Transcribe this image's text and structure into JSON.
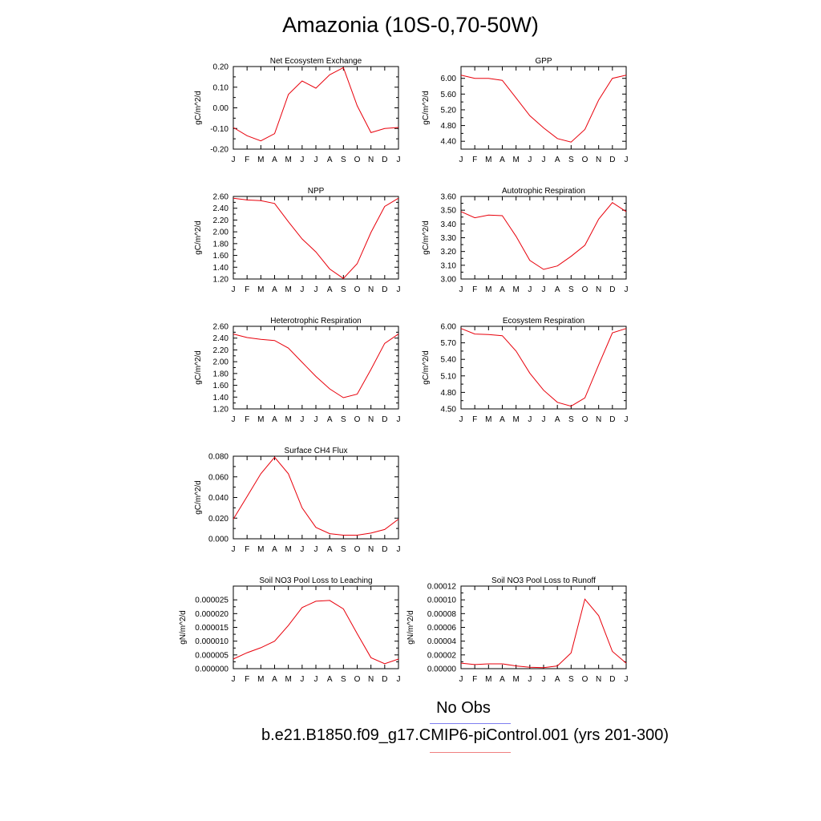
{
  "figure": {
    "title": "Amazonia (10S-0,70-50W)",
    "legend": [
      {
        "label": "No Obs",
        "color": "#7f7ff0"
      },
      {
        "label": "b.e21.B1850.f09_g17.CMIP6-piControl.001 (yrs 201-300)",
        "color": "#f08080"
      }
    ],
    "series_color": "#e8000b"
  },
  "chart_data": [
    {
      "type": "line",
      "title": "Net Ecosystem Exchange",
      "ylabel": "gC/m^2/d",
      "categories": [
        "J",
        "F",
        "M",
        "A",
        "M",
        "J",
        "J",
        "A",
        "S",
        "O",
        "N",
        "D",
        "J"
      ],
      "ylim": [
        -0.2,
        0.2
      ],
      "yticks": [
        "0.20",
        "0.10",
        "0.00",
        "-0.10",
        "-0.20"
      ],
      "ytick_values": [
        0.2,
        0.1,
        0.0,
        -0.1,
        -0.2
      ],
      "values": [
        -0.095,
        -0.135,
        -0.16,
        -0.125,
        0.065,
        0.13,
        0.095,
        0.16,
        0.195,
        0.01,
        -0.12,
        -0.1,
        -0.095
      ]
    },
    {
      "type": "line",
      "title": "GPP",
      "ylabel": "gC/m^2/d",
      "categories": [
        "J",
        "F",
        "M",
        "A",
        "M",
        "J",
        "J",
        "A",
        "S",
        "O",
        "N",
        "D",
        "J"
      ],
      "ylim": [
        4.2,
        6.3
      ],
      "yticks": [
        "6.00",
        "5.60",
        "5.20",
        "4.80",
        "4.40"
      ],
      "ytick_values": [
        6.0,
        5.6,
        5.2,
        4.8,
        4.4
      ],
      "values": [
        6.08,
        6.0,
        6.0,
        5.95,
        5.5,
        5.05,
        4.74,
        4.47,
        4.38,
        4.7,
        5.45,
        6.0,
        6.08
      ]
    },
    {
      "type": "line",
      "title": "NPP",
      "ylabel": "gC/m^2/d",
      "categories": [
        "J",
        "F",
        "M",
        "A",
        "M",
        "J",
        "J",
        "A",
        "S",
        "O",
        "N",
        "D",
        "J"
      ],
      "ylim": [
        1.2,
        2.6
      ],
      "yticks": [
        "2.60",
        "2.40",
        "2.20",
        "2.00",
        "1.80",
        "1.60",
        "1.40",
        "1.20"
      ],
      "ytick_values": [
        2.6,
        2.4,
        2.2,
        2.0,
        1.8,
        1.6,
        1.4,
        1.2
      ],
      "values": [
        2.57,
        2.54,
        2.53,
        2.48,
        2.17,
        1.88,
        1.66,
        1.37,
        1.21,
        1.46,
        1.99,
        2.43,
        2.57
      ]
    },
    {
      "type": "line",
      "title": "Autotrophic Respiration",
      "ylabel": "gC/m^2/d",
      "categories": [
        "J",
        "F",
        "M",
        "A",
        "M",
        "J",
        "J",
        "A",
        "S",
        "O",
        "N",
        "D",
        "J"
      ],
      "ylim": [
        3.0,
        3.6
      ],
      "yticks": [
        "3.60",
        "3.50",
        "3.40",
        "3.30",
        "3.20",
        "3.10",
        "3.00"
      ],
      "ytick_values": [
        3.6,
        3.5,
        3.4,
        3.3,
        3.2,
        3.1,
        3.0
      ],
      "values": [
        3.49,
        3.445,
        3.465,
        3.46,
        3.31,
        3.135,
        3.07,
        3.095,
        3.165,
        3.245,
        3.435,
        3.555,
        3.49
      ]
    },
    {
      "type": "line",
      "title": "Heterotrophic Respiration",
      "ylabel": "gC/m^2/d",
      "categories": [
        "J",
        "F",
        "M",
        "A",
        "M",
        "J",
        "J",
        "A",
        "S",
        "O",
        "N",
        "D",
        "J"
      ],
      "ylim": [
        1.2,
        2.6
      ],
      "yticks": [
        "2.60",
        "2.40",
        "2.20",
        "2.00",
        "1.80",
        "1.60",
        "1.40",
        "1.20"
      ],
      "ytick_values": [
        2.6,
        2.4,
        2.2,
        2.0,
        1.8,
        1.6,
        1.4,
        1.2
      ],
      "values": [
        2.47,
        2.41,
        2.38,
        2.36,
        2.23,
        1.99,
        1.75,
        1.54,
        1.39,
        1.45,
        1.87,
        2.31,
        2.47
      ]
    },
    {
      "type": "line",
      "title": "Ecosystem Respiration",
      "ylabel": "gC/m^2/d",
      "categories": [
        "J",
        "F",
        "M",
        "A",
        "M",
        "J",
        "J",
        "A",
        "S",
        "O",
        "N",
        "D",
        "J"
      ],
      "ylim": [
        4.5,
        6.0
      ],
      "yticks": [
        "6.00",
        "5.70",
        "5.40",
        "5.10",
        "4.80",
        "4.50"
      ],
      "ytick_values": [
        6.0,
        5.7,
        5.4,
        5.1,
        4.8,
        4.5
      ],
      "values": [
        5.96,
        5.86,
        5.85,
        5.83,
        5.55,
        5.15,
        4.84,
        4.62,
        4.55,
        4.7,
        5.3,
        5.88,
        5.96
      ]
    },
    {
      "type": "line",
      "title": "Surface CH4 Flux",
      "ylabel": "gC/m^2/d",
      "categories": [
        "J",
        "F",
        "M",
        "A",
        "M",
        "J",
        "J",
        "A",
        "S",
        "O",
        "N",
        "D",
        "J"
      ],
      "ylim": [
        0.0,
        0.08
      ],
      "yticks": [
        "0.080",
        "0.060",
        "0.040",
        "0.020",
        "0.000"
      ],
      "ytick_values": [
        0.08,
        0.06,
        0.04,
        0.02,
        0.0
      ],
      "values": [
        0.019,
        0.041,
        0.063,
        0.079,
        0.063,
        0.03,
        0.011,
        0.005,
        0.0035,
        0.0035,
        0.0055,
        0.009,
        0.019
      ]
    },
    {
      "type": "line",
      "title": "Soil NO3 Pool Loss to Leaching",
      "ylabel": "gN/m^2/d",
      "categories": [
        "J",
        "F",
        "M",
        "A",
        "M",
        "J",
        "J",
        "A",
        "S",
        "O",
        "N",
        "D",
        "J"
      ],
      "ylim": [
        0.0,
        3e-05
      ],
      "yticks": [
        "0.000025",
        "0.000020",
        "0.000015",
        "0.000010",
        "0.000005",
        "0.000000"
      ],
      "ytick_values": [
        2.5e-05,
        2e-05,
        1.5e-05,
        1e-05,
        5e-06,
        0.0
      ],
      "values": [
        3.5e-06,
        5.8e-06,
        7.6e-06,
        1e-05,
        1.57e-05,
        2.22e-05,
        2.45e-05,
        2.48e-05,
        2.17e-05,
        1.27e-05,
        4e-06,
        1.8e-06,
        3.5e-06
      ]
    },
    {
      "type": "line",
      "title": "Soil NO3 Pool Loss to Runoff",
      "ylabel": "gN/m^2/d",
      "categories": [
        "J",
        "F",
        "M",
        "A",
        "M",
        "J",
        "J",
        "A",
        "S",
        "O",
        "N",
        "D",
        "J"
      ],
      "ylim": [
        0.0,
        0.00012
      ],
      "yticks": [
        "0.00012",
        "0.00010",
        "0.00008",
        "0.00006",
        "0.00004",
        "0.00002",
        "0.00000"
      ],
      "ytick_values": [
        0.00012,
        0.0001,
        8e-05,
        6e-05,
        4e-05,
        2e-05,
        0.0
      ],
      "values": [
        8e-06,
        6e-06,
        7e-06,
        7e-06,
        4e-06,
        2e-06,
        1.5e-06,
        4e-06,
        2.3e-05,
        0.000101,
        7.7e-05,
        2.5e-05,
        8e-06
      ]
    }
  ]
}
